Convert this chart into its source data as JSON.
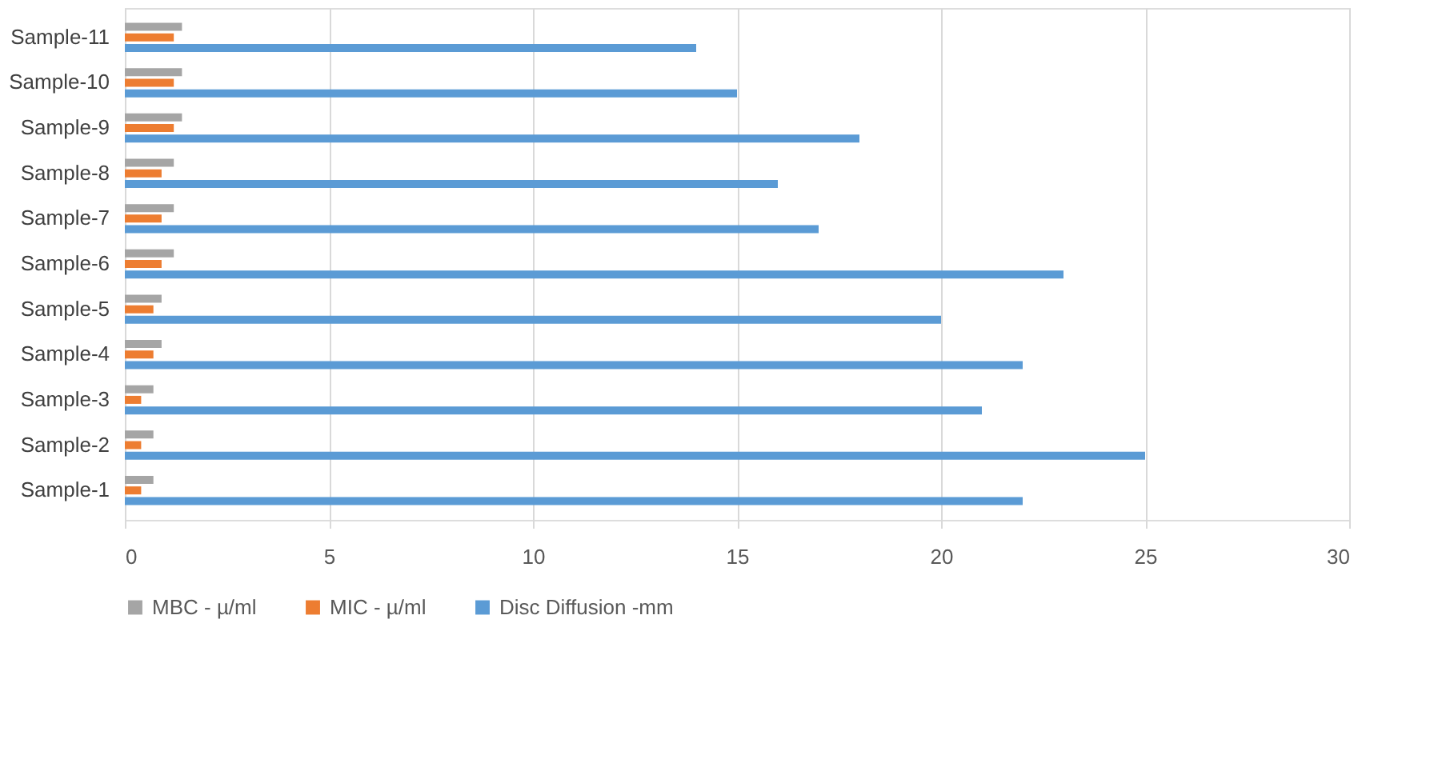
{
  "chart_data": {
    "type": "bar",
    "orientation": "horizontal",
    "categories": [
      "Sample-11",
      "Sample-10",
      "Sample-9",
      "Sample-8",
      "Sample-7",
      "Sample-6",
      "Sample-5",
      "Sample-4",
      "Sample-3",
      "Sample-2",
      "Sample-1"
    ],
    "series": [
      {
        "name": "MBC -  µ/ml",
        "color": "#a5a5a5",
        "values": [
          1.4,
          1.4,
          1.4,
          1.2,
          1.2,
          1.2,
          0.9,
          0.9,
          0.7,
          0.7,
          0.7
        ]
      },
      {
        "name": "MIC -  µ/ml",
        "color": "#ed7d31",
        "values": [
          1.2,
          1.2,
          1.2,
          0.9,
          0.9,
          0.9,
          0.7,
          0.7,
          0.4,
          0.4,
          0.4
        ]
      },
      {
        "name": "Disc Diffusion -mm",
        "color": "#5b9bd5",
        "values": [
          14,
          15,
          18,
          16,
          17,
          23,
          20,
          22,
          21,
          25,
          22
        ]
      }
    ],
    "xlim": [
      0,
      30
    ],
    "xticks": [
      0,
      5,
      10,
      15,
      20,
      25,
      30
    ],
    "grid": "x",
    "legend": "bottom"
  }
}
